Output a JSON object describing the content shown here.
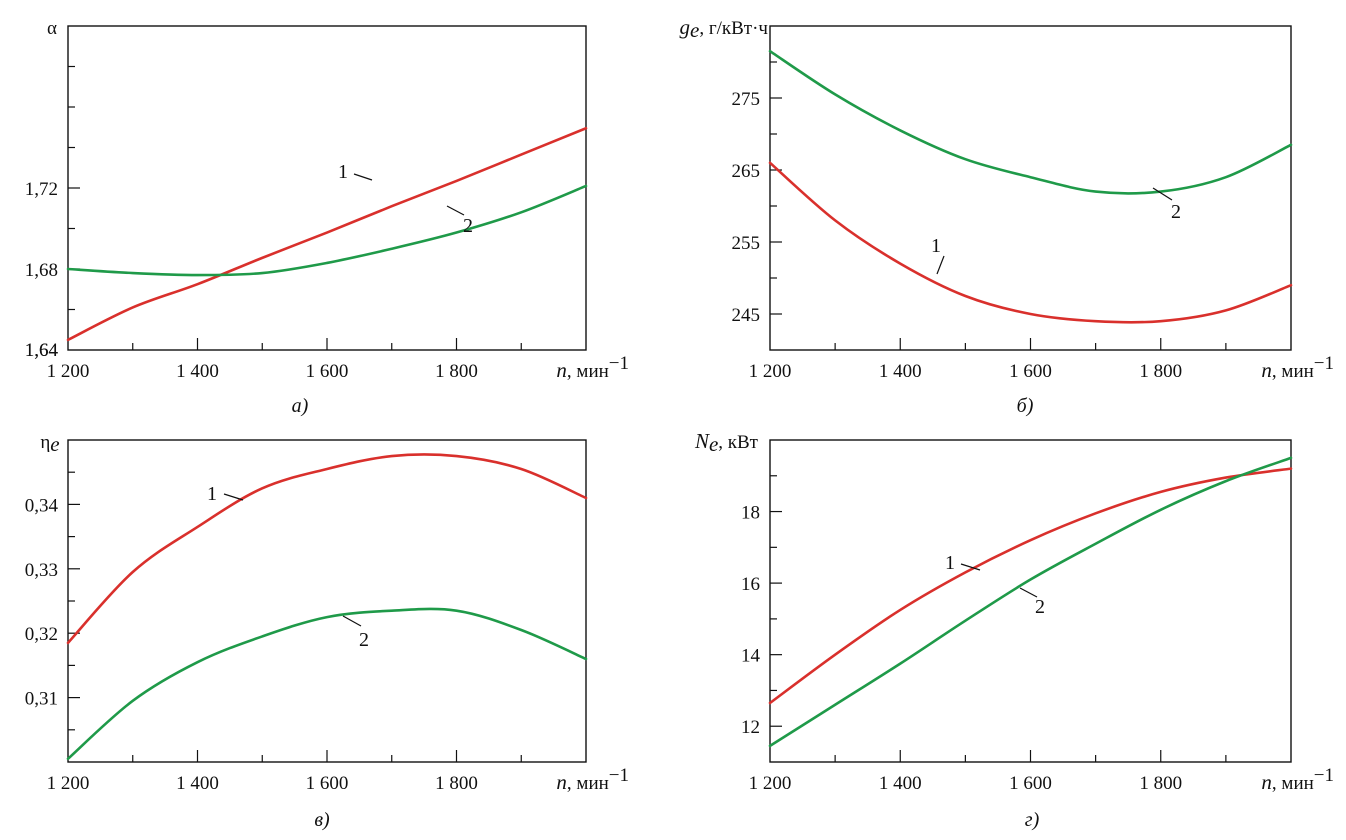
{
  "colors": {
    "series_1": "#d9302c",
    "series_2": "#1f9a49",
    "axis": "#111111"
  },
  "chart_data": [
    {
      "type": "line",
      "caption": "а)",
      "ylabel": "α",
      "xlabel": "n, мин⁻¹",
      "xlim": [
        1200,
        2000
      ],
      "ylim": [
        1.64,
        1.8
      ],
      "xticks": [
        1200,
        1400,
        1600,
        1800
      ],
      "xtick_labels": [
        "1 200",
        "1 400",
        "1 600",
        "1 800"
      ],
      "yticks": [
        1.64,
        1.68,
        1.72
      ],
      "ytick_labels": [
        "1,64",
        "1,68",
        "1,72"
      ],
      "series": [
        {
          "label": "1",
          "x": [
            1200,
            1300,
            1400,
            1500,
            1600,
            1700,
            1800,
            1900,
            2000
          ],
          "y": [
            1.645,
            1.661,
            1.6725,
            1.6855,
            1.698,
            1.711,
            1.7235,
            1.7365,
            1.7495
          ]
        },
        {
          "label": "2",
          "x": [
            1200,
            1300,
            1400,
            1500,
            1600,
            1700,
            1800,
            1900,
            2000
          ],
          "y": [
            1.68,
            1.678,
            1.677,
            1.678,
            1.683,
            1.69,
            1.698,
            1.708,
            1.721
          ]
        }
      ]
    },
    {
      "type": "line",
      "caption": "б)",
      "ylabel": "г/кВт·ч",
      "xlabel": "n, мин⁻¹",
      "xlim": [
        1200,
        2000
      ],
      "ylim": [
        240,
        285
      ],
      "xticks": [
        1200,
        1400,
        1600,
        1800
      ],
      "xtick_labels": [
        "1 200",
        "1 400",
        "1 600",
        "1 800"
      ],
      "yticks": [
        245,
        255,
        265,
        275
      ],
      "ytick_labels": [
        "245",
        "255",
        "265",
        "275"
      ],
      "series": [
        {
          "label": "1",
          "x": [
            1200,
            1300,
            1400,
            1500,
            1600,
            1700,
            1800,
            1900,
            2000
          ],
          "y": [
            266.0,
            258.0,
            252.0,
            247.5,
            245.0,
            244.0,
            244.0,
            245.5,
            249.0
          ]
        },
        {
          "label": "2",
          "x": [
            1200,
            1300,
            1400,
            1500,
            1600,
            1700,
            1800,
            1900,
            2000
          ],
          "y": [
            281.5,
            275.5,
            270.5,
            266.5,
            264.0,
            262.0,
            262.0,
            264.0,
            268.5
          ]
        }
      ]
    },
    {
      "type": "line",
      "caption": "в)",
      "ylabel": "η",
      "xlabel": "n, мин⁻¹",
      "xlim": [
        1200,
        2000
      ],
      "ylim": [
        0.3,
        0.35
      ],
      "xticks": [
        1200,
        1400,
        1600,
        1800
      ],
      "xtick_labels": [
        "1 200",
        "1 400",
        "1 600",
        "1 800"
      ],
      "yticks": [
        0.31,
        0.32,
        0.33,
        0.34
      ],
      "ytick_labels": [
        "0,31",
        "0,32",
        "0,33",
        "0,34"
      ],
      "series": [
        {
          "label": "1",
          "x": [
            1200,
            1300,
            1400,
            1500,
            1600,
            1700,
            1800,
            1900,
            2000
          ],
          "y": [
            0.3185,
            0.3295,
            0.3365,
            0.3425,
            0.3455,
            0.3475,
            0.3475,
            0.3455,
            0.341
          ]
        },
        {
          "label": "2",
          "x": [
            1200,
            1300,
            1400,
            1500,
            1600,
            1700,
            1800,
            1900,
            2000
          ],
          "y": [
            0.3005,
            0.3095,
            0.3155,
            0.3195,
            0.3225,
            0.3235,
            0.3235,
            0.3205,
            0.316
          ]
        }
      ]
    },
    {
      "type": "line",
      "caption": "г)",
      "ylabel": "кВт",
      "xlabel": "n, мин⁻¹",
      "xlim": [
        1200,
        2000
      ],
      "ylim": [
        11,
        20
      ],
      "xticks": [
        1200,
        1400,
        1600,
        1800
      ],
      "xtick_labels": [
        "1 200",
        "1 400",
        "1 600",
        "1 800"
      ],
      "yticks": [
        12,
        14,
        16,
        18
      ],
      "ytick_labels": [
        "12",
        "14",
        "16",
        "18"
      ],
      "series": [
        {
          "label": "1",
          "x": [
            1200,
            1300,
            1400,
            1500,
            1600,
            1700,
            1800,
            1900,
            2000
          ],
          "y": [
            12.65,
            14.0,
            15.25,
            16.3,
            17.2,
            17.95,
            18.55,
            18.95,
            19.2
          ]
        },
        {
          "label": "2",
          "x": [
            1200,
            1300,
            1400,
            1500,
            1600,
            1700,
            1800,
            1900,
            2000
          ],
          "y": [
            11.45,
            12.6,
            13.75,
            14.95,
            16.1,
            17.1,
            18.05,
            18.85,
            19.5
          ]
        }
      ]
    }
  ]
}
